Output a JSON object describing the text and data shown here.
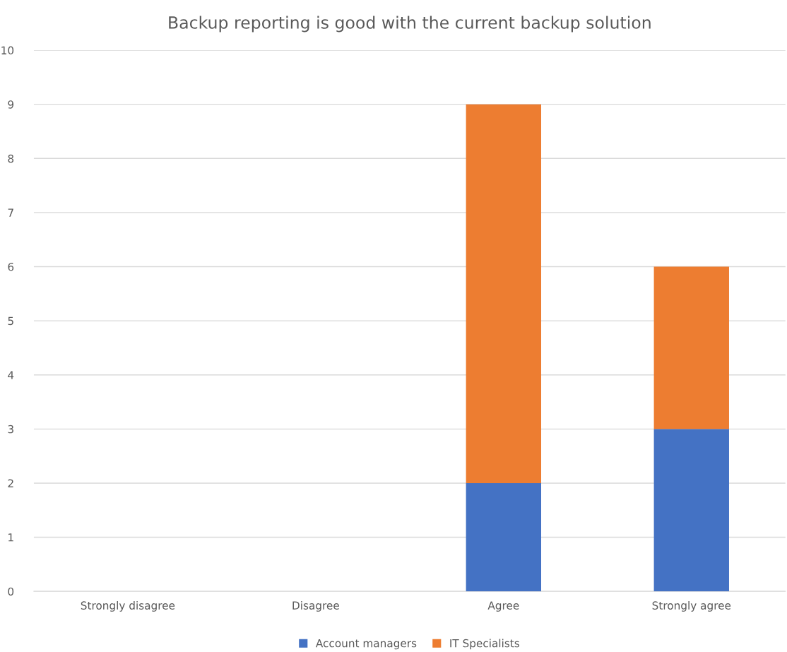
{
  "chart_data": {
    "type": "bar",
    "title": "Backup reporting is good with the current backup solution",
    "categories": [
      "Strongly disagree",
      "Disagree",
      "Agree",
      "Strongly agree"
    ],
    "series": [
      {
        "name": "Account managers",
        "color": "#4472c4",
        "values": [
          0,
          0,
          2,
          3
        ]
      },
      {
        "name": "IT Specialists",
        "color": "#ed7d31",
        "values": [
          0,
          0,
          7,
          3
        ]
      }
    ],
    "stacked": true,
    "ylim": [
      0,
      10
    ],
    "yticks": [
      0,
      1,
      2,
      3,
      4,
      5,
      6,
      7,
      8,
      9,
      10
    ],
    "grid": "y",
    "legend": "bottom"
  }
}
